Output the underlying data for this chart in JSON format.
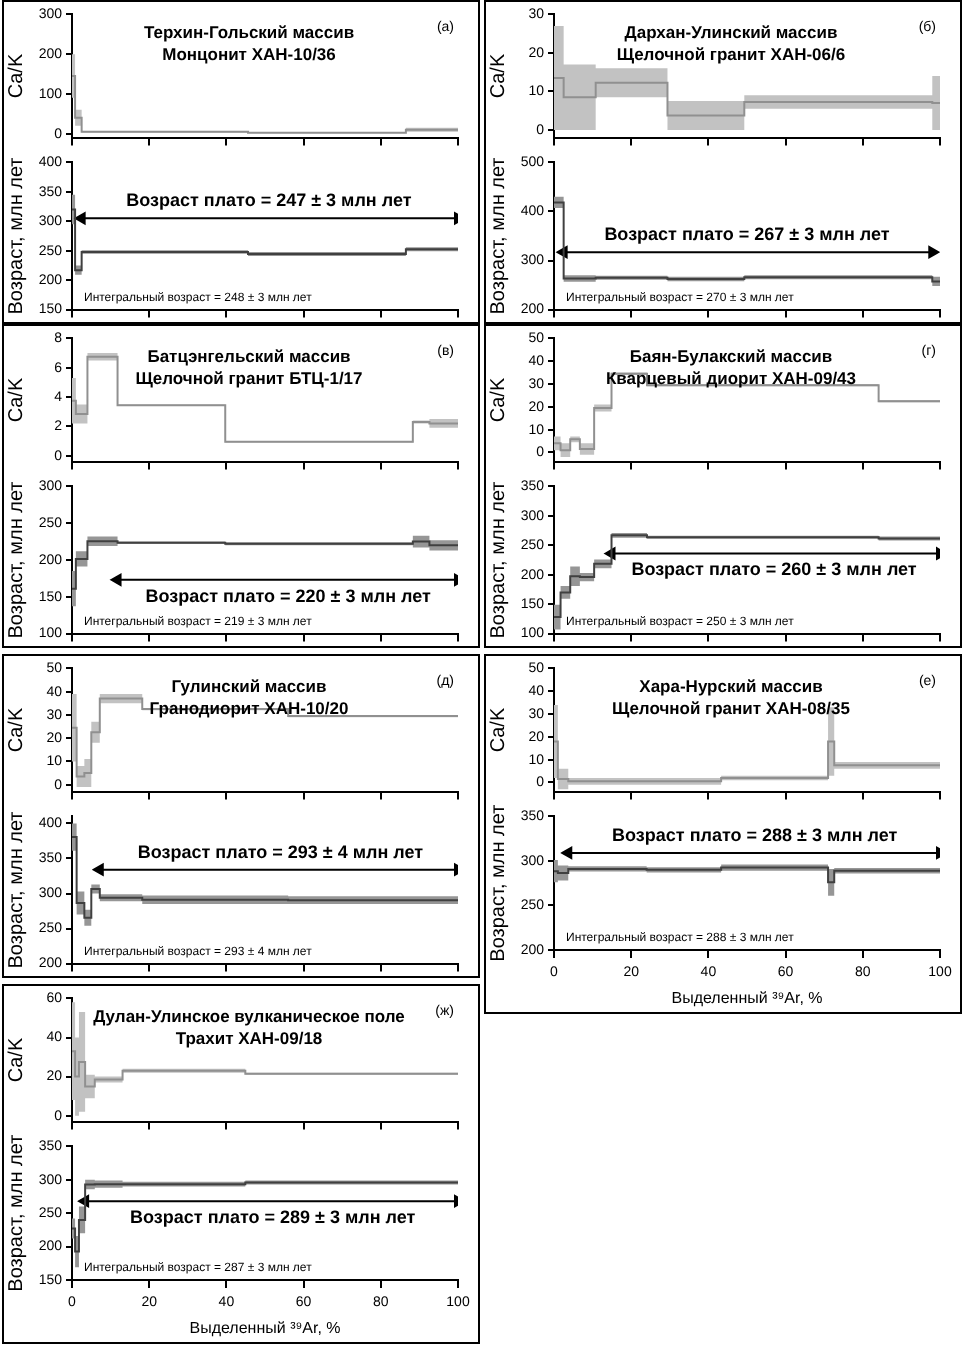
{
  "chart_data": [
    {
      "type": "step",
      "title": "Терхин-Гольский массив\nМонцонит ХАН-10/36",
      "ylabel": "Ca/K",
      "annotations": [
        "(а)"
      ],
      "x": [
        0,
        0.8,
        2.5,
        45.6,
        86.5,
        100
      ],
      "series": [
        {
          "color": "#909090",
          "values": [
            145,
            40,
            4.5,
            2,
            10,
            10
          ],
          "lower": [
            90,
            20,
            3,
            1,
            5,
            5
          ],
          "upper": [
            200,
            60,
            6,
            3,
            15,
            15
          ]
        }
      ],
      "xlim": [
        0,
        100
      ],
      "xticks": [
        0,
        20,
        40,
        60,
        80,
        100
      ],
      "ylim": [
        -10,
        300
      ],
      "yticks": [
        0,
        100,
        200,
        300
      ],
      "tick_labels": "y"
    },
    {
      "type": "step",
      "ylabel": "Возраст, млн лет",
      "annotations": [
        "Интегральный возраст = 248 ± 3 млн лет",
        {
          "text": "Возраст плато = 247 ± 3 млн лет",
          "x": 51,
          "y": 305
        }
      ],
      "x": [
        0,
        0.8,
        2.5,
        45.6,
        86.5,
        100
      ],
      "series": [
        {
          "color": "#404040",
          "values": [
            320,
            217,
            248,
            244.5,
            252.5,
            252.5
          ],
          "lower": [
            295,
            209,
            245,
            241,
            249,
            249
          ],
          "upper": [
            345,
            225,
            251,
            248,
            256,
            256
          ]
        },
        {
          "type": "line",
          "color": "#000000",
          "marker": "triangle",
          "x": [
            2.5,
            100
          ],
          "values": [
            305,
            305
          ]
        }
      ],
      "xlim": [
        0,
        100
      ],
      "xticks": [
        0,
        20,
        40,
        60,
        80,
        100
      ],
      "ylim": [
        150,
        400
      ],
      "yticks": [
        150,
        200,
        250,
        300,
        350,
        400
      ],
      "tick_labels": "y"
    },
    {
      "type": "step",
      "title": "Дархан-Улинский массив\nЩелочной гранит ХАН-06/6",
      "ylabel": "Ca/K",
      "annotations": [
        "(б)"
      ],
      "x": [
        0,
        2.5,
        10.8,
        29.4,
        49.3,
        98,
        100
      ],
      "series": [
        {
          "color": "#909090",
          "values": [
            13.5,
            8.5,
            12.25,
            3.75,
            7.25,
            7,
            7
          ],
          "lower": [
            0,
            0,
            8.5,
            0,
            5.5,
            0,
            0
          ],
          "upper": [
            27,
            17,
            16,
            7.5,
            9,
            14,
            14
          ]
        }
      ],
      "xlim": [
        0,
        100
      ],
      "xticks": [
        0,
        20,
        40,
        60,
        80,
        100
      ],
      "ylim": [
        -2,
        30
      ],
      "yticks": [
        0,
        10,
        20,
        30
      ],
      "tick_labels": "y"
    },
    {
      "type": "step",
      "ylabel": "Возраст, млн лет",
      "annotations": [
        "Интегральный возраст = 270 ± 3 млн лет",
        {
          "text": "Возраст плато = 267 ± 3 млн лет",
          "x": 50,
          "y": 317
        }
      ],
      "x": [
        0,
        2.5,
        10.8,
        29.4,
        49.3,
        98,
        100
      ],
      "series": [
        {
          "color": "#404040",
          "values": [
            418.5,
            263.5,
            265,
            262.5,
            266,
            257.5,
            257.5
          ],
          "lower": [
            407,
            257,
            261,
            258,
            262,
            248,
            248
          ],
          "upper": [
            430,
            270,
            269,
            267,
            270,
            267,
            267
          ]
        },
        {
          "type": "line",
          "color": "#000000",
          "marker": "triangle",
          "x": [
            2.5,
            98
          ],
          "values": [
            317,
            317
          ]
        }
      ],
      "xlim": [
        0,
        100
      ],
      "xticks": [
        0,
        20,
        40,
        60,
        80,
        100
      ],
      "ylim": [
        200,
        500
      ],
      "yticks": [
        200,
        300,
        400,
        500
      ],
      "tick_labels": "y"
    },
    {
      "type": "step",
      "title": "Батцэнгельский массив\nЩелочной гранит БТЦ-1/17",
      "ylabel": "Ca/K",
      "annotations": [
        "(в)"
      ],
      "x": [
        0,
        1,
        4,
        11.8,
        39.7,
        88.3,
        92.6,
        100
      ],
      "series": [
        {
          "color": "#909090",
          "values": [
            3.75,
            2.85,
            6.75,
            3.45,
            0.95,
            2.3,
            2.2,
            2.2
          ],
          "lower": [
            2.2,
            2.2,
            6.5,
            3.4,
            0.9,
            2.2,
            1.9,
            1.9
          ],
          "upper": [
            5.3,
            3.5,
            7,
            3.5,
            1,
            2.4,
            2.5,
            2.5
          ]
        }
      ],
      "xlim": [
        0,
        100
      ],
      "xticks": [
        0,
        20,
        40,
        60,
        80,
        100
      ],
      "ylim": [
        -0.4,
        8
      ],
      "yticks": [
        0,
        2,
        4,
        6,
        8
      ],
      "tick_labels": "y"
    },
    {
      "type": "step",
      "ylabel": "Возраст, млн лет",
      "annotations": [
        "Интегральный возраст = 219 ± 3 млн лет",
        {
          "text": "Возраст плато = 220 ± 3 млн лет",
          "x": 56,
          "y": 173
        }
      ],
      "x": [
        0,
        1,
        4,
        11.8,
        39.7,
        88.3,
        92.6,
        100
      ],
      "series": [
        {
          "color": "#404040",
          "values": [
            161,
            201.5,
            225.5,
            223.5,
            222,
            225,
            220,
            220
          ],
          "lower": [
            137,
            191,
            219,
            222,
            220,
            217,
            213,
            213
          ],
          "upper": [
            185,
            212,
            232,
            225,
            224,
            233,
            227,
            227
          ]
        },
        {
          "type": "line",
          "color": "#000000",
          "marker": "triangle",
          "x": [
            11.8,
            100
          ],
          "values": [
            173,
            173
          ]
        }
      ],
      "xlim": [
        0,
        100
      ],
      "xticks": [
        0,
        20,
        40,
        60,
        80,
        100
      ],
      "ylim": [
        100,
        300
      ],
      "yticks": [
        100,
        150,
        200,
        250,
        300
      ],
      "tick_labels": "y"
    },
    {
      "type": "step",
      "title": "Баян-Булакский массив\nКварцевый диорит ХАН-09/43",
      "ylabel": "Ca/K",
      "annotations": [
        "(г)"
      ],
      "x": [
        0,
        1.7,
        4.2,
        6.7,
        10.4,
        14.9,
        24.1,
        84.1,
        100
      ],
      "series": [
        {
          "color": "#909090",
          "values": [
            4,
            1,
            5.75,
            1.5,
            19.5,
            34.5,
            29.5,
            22.5,
            22.5
          ],
          "lower": [
            1,
            -2,
            4.5,
            -1,
            18,
            34,
            29,
            22,
            22
          ],
          "upper": [
            7,
            4,
            7,
            4,
            21,
            35,
            30,
            23,
            23
          ]
        }
      ],
      "xlim": [
        0,
        100
      ],
      "xticks": [
        0,
        20,
        40,
        60,
        80,
        100
      ],
      "ylim": [
        -4,
        50
      ],
      "yticks": [
        0,
        10,
        20,
        30,
        40,
        50
      ],
      "tick_labels": "y"
    },
    {
      "type": "step",
      "ylabel": "Возраст, млн лет",
      "annotations": [
        "Интегральный возраст = 250 ± 3 млн лет",
        {
          "text": "Возраст плато = 260 ± 3 млн лет",
          "x": 57,
          "y": 236
        }
      ],
      "x": [
        0,
        1.7,
        4.2,
        6.7,
        10.4,
        14.9,
        24.1,
        84.1,
        100
      ],
      "series": [
        {
          "color": "#404040",
          "values": [
            128,
            170,
            197.5,
            196,
            218.5,
            267,
            263.5,
            261.5,
            261.5
          ],
          "lower": [
            107,
            159,
            181,
            189,
            211,
            263,
            261,
            258,
            258
          ],
          "upper": [
            149,
            181,
            214,
            203,
            226,
            271,
            266,
            265,
            265
          ]
        },
        {
          "type": "line",
          "color": "#000000",
          "marker": "triangle",
          "x": [
            14.9,
            100
          ],
          "values": [
            236,
            236
          ]
        }
      ],
      "xlim": [
        0,
        100
      ],
      "xticks": [
        0,
        20,
        40,
        60,
        80,
        100
      ],
      "ylim": [
        100,
        350
      ],
      "yticks": [
        100,
        150,
        200,
        250,
        300,
        350
      ],
      "tick_labels": "y"
    },
    {
      "type": "step",
      "title": "Гулинский массив\nГранодиорит ХАН-10/20",
      "ylabel": "Ca/K",
      "annotations": [
        "(д)"
      ],
      "x": [
        0,
        1.2,
        3.2,
        5,
        7.2,
        18.2,
        56,
        100
      ],
      "series": [
        {
          "color": "#909090",
          "values": [
            24.5,
            3.5,
            5,
            22.5,
            37,
            32.5,
            29.5,
            29.5
          ],
          "lower": [
            10,
            -1,
            -1,
            18,
            35,
            32,
            29,
            29
          ],
          "upper": [
            39,
            8,
            11,
            27,
            39,
            33,
            30,
            30
          ]
        }
      ],
      "xlim": [
        0,
        100
      ],
      "xticks": [
        0,
        20,
        40,
        60,
        80,
        100
      ],
      "ylim": [
        -3,
        50
      ],
      "yticks": [
        0,
        10,
        20,
        30,
        40,
        50
      ],
      "tick_labels": "y"
    },
    {
      "type": "step",
      "ylabel": "Возраст, млн лет",
      "annotations": [
        "Интегральный возраст = 293 ± 4 млн лет",
        {
          "text": "Возраст плато = 293 ± 4 млн лет",
          "x": 54,
          "y": 334
        }
      ],
      "x": [
        0,
        1.2,
        3.2,
        5,
        7.2,
        18.2,
        56,
        100
      ],
      "series": [
        {
          "color": "#404040",
          "values": [
            380.5,
            286.5,
            265.5,
            306.5,
            294,
            291,
            290.5,
            290.5
          ],
          "lower": [
            361,
            270,
            254,
            300,
            289,
            285,
            285,
            285
          ],
          "upper": [
            400,
            303,
            277,
            313,
            299,
            297,
            296,
            296
          ]
        },
        {
          "type": "line",
          "color": "#000000",
          "marker": "triangle",
          "x": [
            7.2,
            100
          ],
          "values": [
            334,
            334
          ]
        }
      ],
      "xlim": [
        0,
        100
      ],
      "xticks": [
        0,
        20,
        40,
        60,
        80,
        100
      ],
      "ylim": [
        200,
        410
      ],
      "yticks": [
        200,
        250,
        300,
        350,
        400
      ],
      "tick_labels": "y"
    },
    {
      "type": "step",
      "title": "Хара-Нурский массив\nЩелочной гранит ХАН-08/35",
      "ylabel": "Ca/K",
      "annotations": [
        "(е)"
      ],
      "x": [
        0,
        1,
        3.7,
        24,
        43.3,
        71,
        72.6,
        100
      ],
      "series": [
        {
          "color": "#909090",
          "values": [
            18,
            1.5,
            0.5,
            0.5,
            2,
            18,
            7.5,
            7.5
          ],
          "lower": [
            2,
            -3,
            -1,
            -1,
            1,
            3,
            6,
            6
          ],
          "upper": [
            34,
            6,
            2,
            2,
            3,
            33,
            9,
            9
          ]
        }
      ],
      "xlim": [
        0,
        100
      ],
      "xticks": [
        0,
        20,
        40,
        60,
        80,
        100
      ],
      "ylim": [
        -4,
        50
      ],
      "yticks": [
        0,
        10,
        20,
        30,
        40,
        50
      ],
      "tick_labels": "y"
    },
    {
      "type": "step",
      "ylabel": "Возраст, млн лет",
      "xlabel": "Выделенный ³⁹Ar, %",
      "annotations": [
        "Интегральный возраст = 288 ± 3 млн лет",
        {
          "text": "Возраст плато = 288 ± 3 млн лет",
          "x": 52,
          "y": 309
        }
      ],
      "x": [
        0,
        1,
        3.7,
        24,
        43.3,
        71,
        72.6,
        100
      ],
      "series": [
        {
          "color": "#404040",
          "values": [
            288.5,
            286.5,
            291,
            290,
            292.5,
            276,
            289,
            289
          ],
          "lower": [
            276,
            278,
            288,
            287,
            289,
            261,
            286,
            286
          ],
          "upper": [
            301,
            295,
            294,
            293,
            296,
            291,
            292,
            292
          ]
        },
        {
          "type": "line",
          "color": "#000000",
          "marker": "triangle",
          "x": [
            3.7,
            100
          ],
          "values": [
            309,
            309
          ]
        }
      ],
      "xlim": [
        0,
        100
      ],
      "xticks": [
        0,
        20,
        40,
        60,
        80,
        100
      ],
      "ylim": [
        200,
        350
      ],
      "yticks": [
        200,
        250,
        300,
        350
      ]
    },
    {
      "type": "step",
      "title": "Дулан-Улинское вулканическое поле\nТрахит ХАН-09/18",
      "ylabel": "Ca/K",
      "annotations": [
        "(ж)"
      ],
      "x": [
        0,
        0.8,
        1.8,
        3.4,
        5.9,
        13.1,
        44.9,
        100
      ],
      "series": [
        {
          "color": "#909090",
          "values": [
            33,
            20,
            27.5,
            15,
            18.5,
            23,
            21.5,
            21.5
          ],
          "lower": [
            8,
            0,
            2,
            9,
            17,
            22,
            21,
            21
          ],
          "upper": [
            58,
            40,
            53,
            21,
            20,
            24,
            22,
            22
          ]
        }
      ],
      "xlim": [
        0,
        100
      ],
      "xticks": [
        0,
        20,
        40,
        60,
        80,
        100
      ],
      "ylim": [
        -3,
        60
      ],
      "yticks": [
        0,
        20,
        40,
        60
      ],
      "tick_labels": "y"
    },
    {
      "type": "step",
      "ylabel": "Возраст, млн лет",
      "xlabel": "Выделенный ³⁹Ar, %",
      "annotations": [
        "Интегральный возраст = 287 ± 3 млн лет",
        {
          "text": "Возраст плато = 289 ± 3 млн лет",
          "x": 52,
          "y": 268
        }
      ],
      "x": [
        0,
        0.8,
        1.8,
        3.4,
        5.9,
        13.1,
        44.9,
        100
      ],
      "series": [
        {
          "color": "#404040",
          "values": [
            227,
            192.5,
            240,
            293,
            293.5,
            293.5,
            296,
            296
          ],
          "lower": [
            212,
            169,
            220,
            286,
            288,
            290,
            293,
            293
          ],
          "upper": [
            242,
            216,
            260,
            300,
            299,
            297,
            299,
            299
          ]
        },
        {
          "type": "line",
          "color": "#000000",
          "marker": "triangle",
          "x": [
            3.4,
            100
          ],
          "values": [
            268,
            268
          ]
        }
      ],
      "xlim": [
        0,
        100
      ],
      "xticks": [
        0,
        20,
        40,
        60,
        80,
        100
      ],
      "ylim": [
        150,
        350
      ],
      "yticks": [
        150,
        200,
        250,
        300,
        350
      ]
    }
  ]
}
